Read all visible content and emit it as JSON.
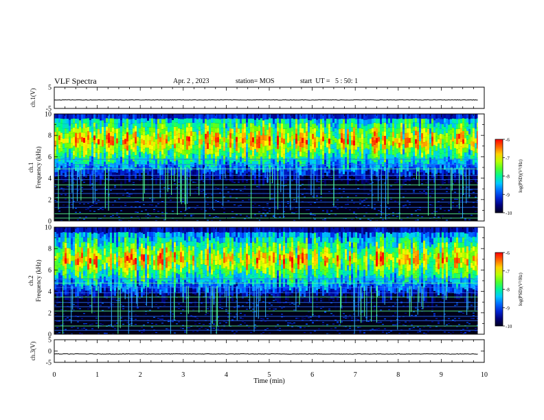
{
  "header": {
    "title": "VLF Spectra",
    "date": "Apr. 2 , 2023",
    "station": "station= MOS",
    "start": "start  UT =   5 : 50: 1"
  },
  "colors": {
    "spectrogram_low": "#000020",
    "spectrogram_mid": "#00ff80",
    "spectrogram_high": "#ff0000"
  },
  "chart_data": [
    {
      "type": "line",
      "panel": "ch1-waveform",
      "ylabel": "ch.1(V)",
      "ylim": [
        -5,
        5
      ],
      "yticks": [
        "5",
        "-5"
      ],
      "x": [
        0,
        10
      ],
      "values": [
        -1,
        -1
      ]
    },
    {
      "type": "heatmap",
      "panel": "ch1-spectrogram",
      "ylabel": "ch.1  Frequency (kHz)",
      "ylim": [
        0,
        10
      ],
      "yticks": [
        "0",
        "2",
        "4",
        "6",
        "8",
        "10"
      ],
      "xlim": [
        0,
        9.85
      ],
      "band_khz": [
        4.5,
        10
      ],
      "peak_khz": 7.5,
      "colorbar": {
        "label": "log(PSD)(V²/Hz)",
        "range": [
          -10,
          -6
        ],
        "ticks": [
          "-6",
          "-7",
          "-8",
          "-9",
          "-10"
        ]
      }
    },
    {
      "type": "heatmap",
      "panel": "ch2-spectrogram",
      "ylabel": "ch.2  Frequency (kHz)",
      "ylim": [
        0,
        10
      ],
      "yticks": [
        "0",
        "2",
        "4",
        "6",
        "8",
        "10"
      ],
      "xlim": [
        0,
        9.85
      ],
      "band_khz": [
        4,
        10
      ],
      "peak_khz": 7,
      "colorbar": {
        "label": "log(PSD)(V²/Hz)",
        "range": [
          -10,
          -6
        ],
        "ticks": [
          "-6",
          "-7",
          "-8",
          "-9",
          "-10"
        ]
      }
    },
    {
      "type": "line",
      "panel": "ch3-waveform",
      "ylabel": "ch.3(V)",
      "ylim": [
        -5,
        5
      ],
      "yticks": [
        "5",
        "0",
        "-5"
      ],
      "x": [
        0,
        10
      ],
      "values": [
        -1.3,
        -1.3
      ]
    }
  ],
  "xaxis": {
    "label": "Time  (min)",
    "xlim": [
      0,
      10
    ],
    "ticks": [
      "0",
      "1",
      "2",
      "3",
      "4",
      "5",
      "6",
      "7",
      "8",
      "9",
      "10"
    ]
  }
}
